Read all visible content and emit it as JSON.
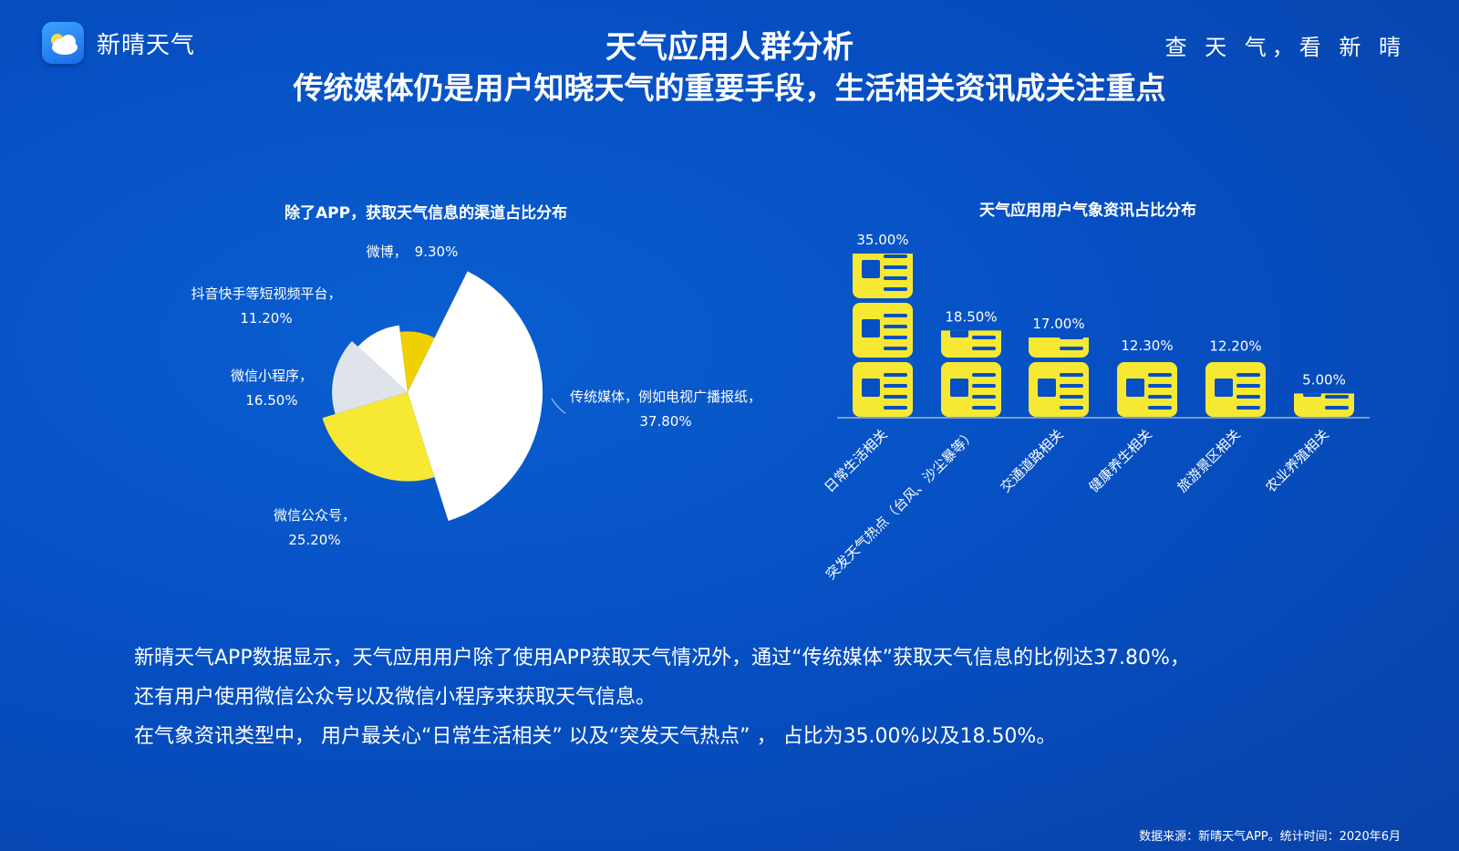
{
  "header": {
    "app_name": "新晴天气",
    "slogan": "查 天 气，看 新 晴",
    "title_line1": "天气应用人群分析",
    "title_line2": "传统媒体仍是用户知晓天气的重要手段，生活相关资讯成关注重点"
  },
  "colors": {
    "background": "#0650c4",
    "yellow": "#f7e833",
    "gold": "#f0d000",
    "white": "#ffffff",
    "gray": "#dfe3ea"
  },
  "chart_data": [
    {
      "type": "pie",
      "title": "除了APP，获取天气信息的渠道占比分布",
      "slices": [
        {
          "label_line1": "传统媒体，例如电视广播报纸，",
          "label_line2": "37.80%",
          "value": 37.8,
          "color": "#ffffff"
        },
        {
          "label_line1": "微信公众号，",
          "label_line2": "25.20%",
          "value": 25.2,
          "color": "#f7e833"
        },
        {
          "label_line1": "微信小程序，",
          "label_line2": "16.50%",
          "value": 16.5,
          "color": "#dfe3ea"
        },
        {
          "label_line1": "抖音快手等短视频平台，",
          "label_line2": "11.20%",
          "value": 11.2,
          "color": "#ffffff"
        },
        {
          "label_line1": "微博，",
          "label_line2": "9.30%",
          "value": 9.3,
          "color": "#f0d000"
        }
      ]
    },
    {
      "type": "bar",
      "title": "天气应用用户气象资讯占比分布",
      "categories": [
        "日常生活相关",
        "突发天气热点（台风、沙尘暴等）",
        "交通道路相关",
        "健康养生相关",
        "旅游景区相关",
        "农业养殖相关"
      ],
      "values": [
        35.0,
        18.5,
        17.0,
        12.3,
        12.2,
        5.0
      ],
      "value_labels": [
        "35.00%",
        "18.50%",
        "17.00%",
        "12.30%",
        "12.20%",
        "5.00%"
      ],
      "ylim": [
        0,
        35
      ]
    }
  ],
  "summary": {
    "line1": "新晴天气APP数据显示，天气应用用户除了使用APP获取天气情况外，通过“传统媒体”获取天气信息的比例达37.80%，",
    "line2": "还有用户使用微信公众号以及微信小程序来获取天气信息。",
    "line3": "在气象资讯类型中， 用户最关心“日常生活相关” 以及“突发天气热点” ， 占比为35.00%以及18.50%。"
  },
  "footer": "数据来源：新晴天气APP。统计时间：2020年6月"
}
